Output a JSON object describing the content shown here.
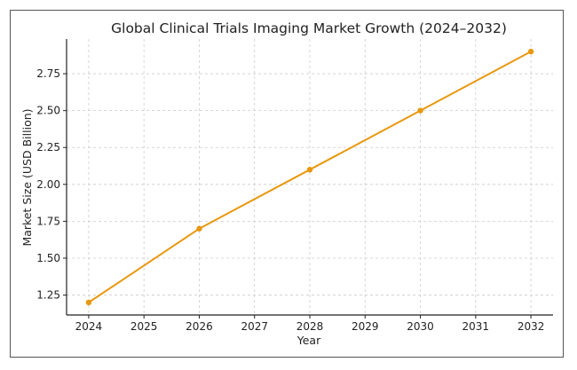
{
  "chart_data": {
    "type": "line",
    "title": "Global Clinical Trials Imaging Market Growth (2024–2032)",
    "xlabel": "Year",
    "ylabel": "Market Size (USD Billion)",
    "x": [
      2024,
      2026,
      2028,
      2030,
      2032
    ],
    "series": [
      {
        "name": "Market Size",
        "values": [
          1.2,
          1.7,
          2.1,
          2.5,
          2.9
        ]
      }
    ],
    "xticks": [
      "2024",
      "2025",
      "2026",
      "2027",
      "2028",
      "2029",
      "2030",
      "2031",
      "2032"
    ],
    "yticks": [
      "1.25",
      "1.50",
      "1.75",
      "2.00",
      "2.25",
      "2.50",
      "2.75"
    ],
    "xlim": [
      2023.6,
      2032.4
    ],
    "ylim": [
      1.115,
      2.985
    ],
    "grid": true,
    "line_color": "#E8980E"
  }
}
